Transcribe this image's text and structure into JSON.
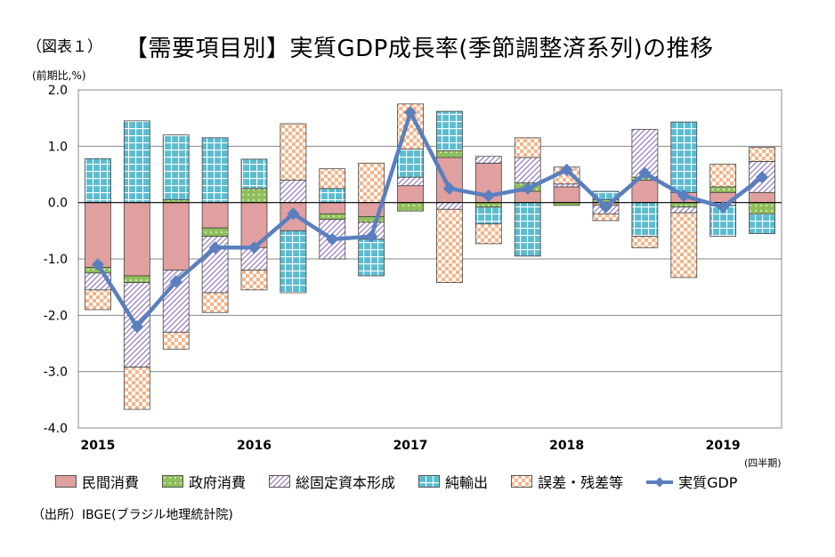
{
  "figure_label": "（図表１）",
  "title": "【需要項目別】実質GDP成長率(季節調整済系列)の推移",
  "unit_label": "(前期比,%)",
  "quarter_note": "(四半期)",
  "source": "（出所）IBGE(ブラジル地理統計院)",
  "colors": {
    "private": "#e0a0a0",
    "government": "#8fbf5a",
    "investment": "#c9b6dd",
    "netexports": "#5bbccf",
    "error": "#f5b589",
    "gdp": "#5a7fbf",
    "grid": "#888888"
  },
  "legend": [
    {
      "key": "private",
      "label": "民間消費"
    },
    {
      "key": "government",
      "label": "政府消費"
    },
    {
      "key": "investment",
      "label": "総固定資本形成"
    },
    {
      "key": "netexports",
      "label": "純輸出"
    },
    {
      "key": "error",
      "label": "誤差・残差等"
    },
    {
      "key": "gdp",
      "label": "実質GDP"
    }
  ],
  "chart_data": {
    "type": "bar",
    "stacked": true,
    "y_tick_labels": [
      "2.0",
      "1.0",
      "0.0",
      "-1.0",
      "-2.0",
      "-3.0",
      "-4.0"
    ],
    "ylim": [
      -4.0,
      2.0
    ],
    "x_tick_labels": [
      "2015",
      "2016",
      "2017",
      "2018",
      "2019"
    ],
    "x_tick_label_quarter_index": [
      0,
      4,
      8,
      12,
      16
    ],
    "grid": true,
    "legend_position": "bottom",
    "series": [
      {
        "name": "民間消費",
        "key": "private",
        "values": [
          -1.15,
          -1.3,
          -1.2,
          -0.45,
          -0.8,
          -0.5,
          -0.2,
          -0.25,
          0.3,
          0.8,
          0.7,
          0.2,
          0.28,
          -0.05,
          0.4,
          0.18,
          0.18,
          0.18
        ]
      },
      {
        "name": "政府消費",
        "key": "government",
        "values": [
          -0.1,
          -0.12,
          0.05,
          -0.15,
          0.25,
          0.0,
          -0.1,
          -0.1,
          -0.15,
          0.12,
          -0.08,
          0.15,
          -0.05,
          0.05,
          0.05,
          -0.08,
          0.1,
          -0.2
        ]
      },
      {
        "name": "総固定資本形成",
        "key": "investment",
        "values": [
          -0.3,
          -1.5,
          -1.1,
          -1.0,
          -0.4,
          0.4,
          -0.7,
          -0.3,
          0.15,
          -0.12,
          0.12,
          0.45,
          0.05,
          -0.15,
          0.85,
          -0.1,
          -0.05,
          0.55
        ]
      },
      {
        "name": "純輸出",
        "key": "netexports",
        "values": [
          0.78,
          1.45,
          1.15,
          1.15,
          0.52,
          -1.1,
          0.25,
          -0.65,
          0.5,
          0.7,
          -0.3,
          -0.95,
          0.0,
          0.15,
          -0.6,
          1.25,
          -0.55,
          -0.35
        ]
      },
      {
        "name": "誤差・残差等",
        "key": "error",
        "values": [
          -0.35,
          -0.75,
          -0.3,
          -0.35,
          -0.35,
          1.0,
          0.35,
          0.7,
          0.8,
          -1.3,
          -0.35,
          0.35,
          0.3,
          -0.12,
          -0.2,
          -1.15,
          0.4,
          0.25
        ]
      }
    ],
    "line": {
      "name": "実質GDP",
      "key": "gdp",
      "values": [
        -1.1,
        -2.2,
        -1.4,
        -0.8,
        -0.8,
        -0.2,
        -0.65,
        -0.6,
        1.6,
        0.25,
        0.12,
        0.25,
        0.58,
        -0.08,
        0.52,
        0.12,
        -0.08,
        0.45
      ]
    }
  }
}
